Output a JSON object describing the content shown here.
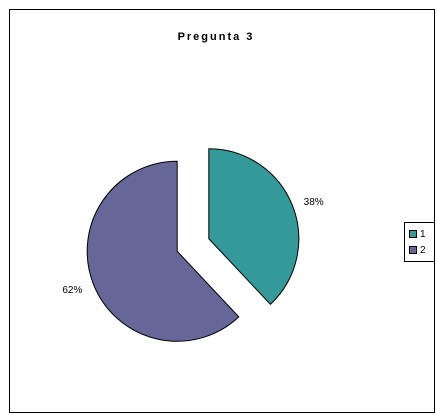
{
  "chart_data": {
    "type": "pie",
    "title": "Pregunta 3",
    "categories": [
      "1",
      "2"
    ],
    "values": [
      38,
      62
    ],
    "labels": [
      "38%",
      "62%"
    ],
    "colors": [
      "#339999",
      "#666699"
    ],
    "exploded": true,
    "legend_position": "right"
  }
}
